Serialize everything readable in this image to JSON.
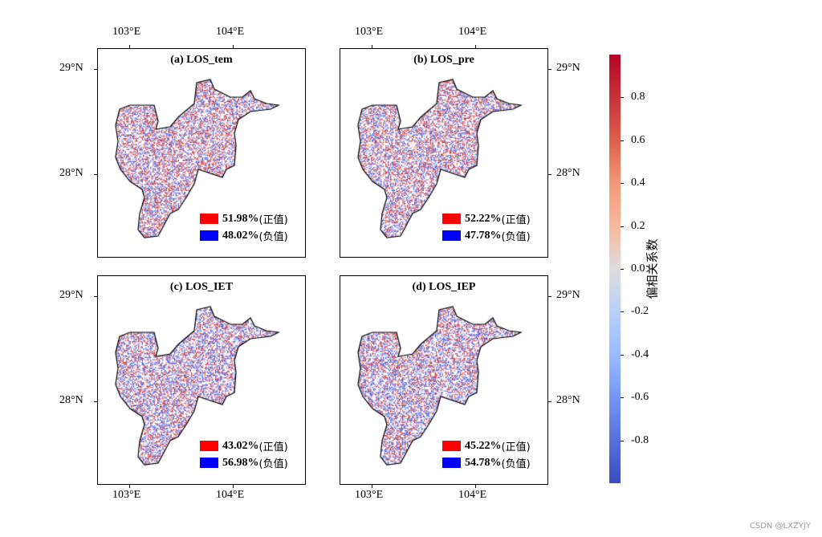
{
  "panels": [
    {
      "title": "(a) LOS_tem",
      "positive_pct": "51.98%",
      "negative_pct": "48.02%",
      "positive_frac": 0.5198
    },
    {
      "title": "(b) LOS_pre",
      "positive_pct": "52.22%",
      "negative_pct": "47.78%",
      "positive_frac": 0.5222
    },
    {
      "title": "(c) LOS_IET",
      "positive_pct": "43.02%",
      "negative_pct": "56.98%",
      "positive_frac": 0.4302
    },
    {
      "title": "(d) LOS_IEP",
      "positive_pct": "45.22%",
      "negative_pct": "54.78%",
      "positive_frac": 0.4522
    }
  ],
  "legend": {
    "positive_label": "(正值)",
    "negative_label": "(负值)",
    "positive_color": "#ff0000",
    "negative_color": "#0000ff"
  },
  "lon_ticks": [
    "103°E",
    "104°E"
  ],
  "lat_ticks": [
    "29°N",
    "28°N"
  ],
  "colorbar": {
    "label": "偏相关系数",
    "ticks": [
      "0.8",
      "0.6",
      "0.4",
      "0.2",
      "0.0",
      "-0.2",
      "-0.4",
      "-0.6",
      "-0.8"
    ],
    "tick_values": [
      0.8,
      0.6,
      0.4,
      0.2,
      0,
      -0.2,
      -0.4,
      -0.6,
      -0.8
    ],
    "range": [
      -1,
      1
    ],
    "colormap": "coolwarm"
  },
  "watermark": "CSDN @LXZYJY"
}
